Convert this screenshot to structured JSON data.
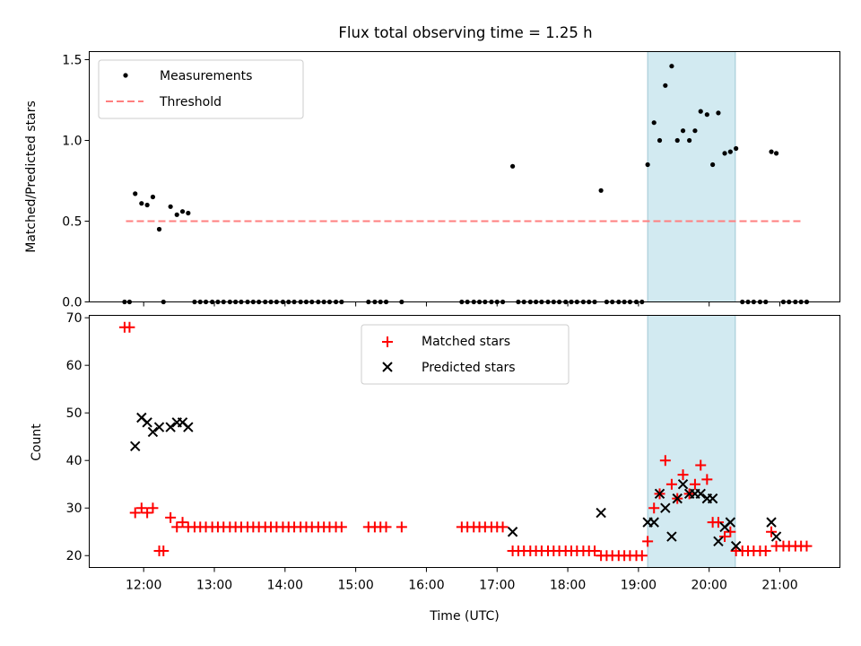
{
  "chart_data": {
    "title": "Flux total observing time = 1.25 h",
    "xlabel": "Time (UTC)",
    "x_ticks": [
      "12:00",
      "13:00",
      "14:00",
      "15:00",
      "16:00",
      "17:00",
      "18:00",
      "19:00",
      "20:00",
      "21:00"
    ],
    "x_tick_hours": [
      12,
      13,
      14,
      15,
      16,
      17,
      18,
      19,
      20,
      21
    ],
    "xlim_hours": [
      11.23,
      21.85
    ],
    "highlight_band_hours": [
      19.13,
      20.37
    ],
    "highlight_color": "#add8e6",
    "panels": [
      {
        "type": "scatter",
        "ylabel": "Matched/Predicted stars",
        "ylim": [
          0,
          1.55
        ],
        "yticks": [
          "0.0",
          "0.5",
          "1.0",
          "1.5"
        ],
        "ytick_values": [
          0,
          0.5,
          1.0,
          1.5
        ],
        "legend": "top-left",
        "threshold": {
          "name": "Threshold",
          "value": 0.5,
          "x_range_hours": [
            11.75,
            21.33
          ],
          "color": "#ff7f7f"
        },
        "series": [
          {
            "name": "Measurements",
            "color": "#000000",
            "x_hours": [
              11.73,
              11.8,
              11.88,
              11.97,
              12.05,
              12.13,
              12.22,
              12.28,
              12.38,
              12.47,
              12.55,
              12.63,
              12.72,
              12.8,
              12.88,
              12.97,
              13.05,
              13.13,
              13.22,
              13.3,
              13.38,
              13.47,
              13.55,
              13.63,
              13.72,
              13.8,
              13.88,
              13.97,
              14.05,
              14.13,
              14.22,
              14.3,
              14.38,
              14.47,
              14.55,
              14.63,
              14.72,
              14.8,
              15.18,
              15.27,
              15.35,
              15.43,
              15.65,
              16.5,
              16.58,
              16.67,
              16.75,
              16.83,
              16.92,
              17.0,
              17.08,
              17.22,
              17.3,
              17.38,
              17.47,
              17.55,
              17.63,
              17.72,
              17.8,
              17.88,
              17.97,
              18.05,
              18.13,
              18.22,
              18.3,
              18.38,
              18.47,
              18.55,
              18.63,
              18.72,
              18.8,
              18.88,
              18.97,
              19.05,
              19.13,
              19.22,
              19.3,
              19.38,
              19.47,
              19.55,
              19.63,
              19.72,
              19.8,
              19.88,
              19.97,
              20.05,
              20.13,
              20.22,
              20.3,
              20.38,
              20.47,
              20.55,
              20.63,
              20.72,
              20.8,
              20.88,
              20.95,
              21.05,
              21.13,
              21.22,
              21.3,
              21.38
            ],
            "y": [
              0,
              0,
              0.67,
              0.61,
              0.6,
              0.65,
              0.45,
              0,
              0.59,
              0.54,
              0.56,
              0.55,
              0,
              0,
              0,
              0,
              0,
              0,
              0,
              0,
              0,
              0,
              0,
              0,
              0,
              0,
              0,
              0,
              0,
              0,
              0,
              0,
              0,
              0,
              0,
              0,
              0,
              0,
              0,
              0,
              0,
              0,
              0,
              0,
              0,
              0,
              0,
              0,
              0,
              0,
              0,
              0.84,
              0,
              0,
              0,
              0,
              0,
              0,
              0,
              0,
              0,
              0,
              0,
              0,
              0,
              0,
              0.69,
              0,
              0,
              0,
              0,
              0,
              0,
              0,
              0.85,
              1.11,
              1.0,
              1.34,
              1.46,
              1.0,
              1.06,
              1.0,
              1.06,
              1.18,
              1.16,
              0.85,
              1.17,
              0.92,
              0.93,
              0.95,
              0,
              0,
              0,
              0,
              0,
              0.93,
              0.92,
              0,
              0,
              0,
              0,
              0
            ]
          }
        ]
      },
      {
        "type": "scatter",
        "ylabel": "Count",
        "ylim": [
          17.5,
          70.5
        ],
        "yticks": [
          "20",
          "30",
          "40",
          "50",
          "60",
          "70"
        ],
        "ytick_values": [
          20,
          30,
          40,
          50,
          60,
          70
        ],
        "legend": "top-center",
        "series": [
          {
            "name": "Matched stars",
            "marker": "plus",
            "color": "#ff0000",
            "x_hours": [
              11.73,
              11.8,
              11.88,
              11.97,
              12.05,
              12.13,
              12.22,
              12.28,
              12.38,
              12.47,
              12.55,
              12.63,
              12.72,
              12.8,
              12.88,
              12.97,
              13.05,
              13.13,
              13.22,
              13.3,
              13.38,
              13.47,
              13.55,
              13.63,
              13.72,
              13.8,
              13.88,
              13.97,
              14.05,
              14.13,
              14.22,
              14.3,
              14.38,
              14.47,
              14.55,
              14.63,
              14.72,
              14.8,
              15.18,
              15.27,
              15.35,
              15.43,
              15.65,
              16.5,
              16.58,
              16.67,
              16.75,
              16.83,
              16.92,
              17.0,
              17.08,
              17.22,
              17.3,
              17.38,
              17.47,
              17.55,
              17.63,
              17.72,
              17.8,
              17.88,
              17.97,
              18.05,
              18.13,
              18.22,
              18.3,
              18.38,
              18.47,
              18.55,
              18.63,
              18.72,
              18.8,
              18.88,
              18.97,
              19.05,
              19.13,
              19.22,
              19.3,
              19.38,
              19.47,
              19.55,
              19.63,
              19.72,
              19.8,
              19.88,
              19.97,
              20.05,
              20.13,
              20.22,
              20.3,
              20.38,
              20.47,
              20.55,
              20.63,
              20.72,
              20.8,
              20.88,
              20.95,
              21.05,
              21.13,
              21.22,
              21.3,
              21.38
            ],
            "y": [
              68,
              68,
              29,
              30,
              29,
              30,
              21,
              21,
              28,
              26,
              27,
              26,
              26,
              26,
              26,
              26,
              26,
              26,
              26,
              26,
              26,
              26,
              26,
              26,
              26,
              26,
              26,
              26,
              26,
              26,
              26,
              26,
              26,
              26,
              26,
              26,
              26,
              26,
              26,
              26,
              26,
              26,
              26,
              26,
              26,
              26,
              26,
              26,
              26,
              26,
              26,
              21,
              21,
              21,
              21,
              21,
              21,
              21,
              21,
              21,
              21,
              21,
              21,
              21,
              21,
              21,
              20,
              20,
              20,
              20,
              20,
              20,
              20,
              20,
              23,
              30,
              33,
              40,
              35,
              32,
              37,
              33,
              35,
              39,
              36,
              27,
              27,
              24,
              25,
              21,
              21,
              21,
              21,
              21,
              21,
              25,
              22,
              22,
              22,
              22,
              22,
              22
            ]
          },
          {
            "name": "Predicted stars",
            "marker": "x",
            "color": "#000000",
            "x_hours": [
              11.88,
              11.97,
              12.05,
              12.13,
              12.22,
              12.38,
              12.47,
              12.55,
              12.63,
              17.22,
              18.47,
              19.13,
              19.22,
              19.3,
              19.38,
              19.47,
              19.55,
              19.63,
              19.72,
              19.8,
              19.88,
              19.97,
              20.05,
              20.13,
              20.22,
              20.3,
              20.38,
              20.88,
              20.95
            ],
            "y": [
              43,
              49,
              48,
              46,
              47,
              47,
              48,
              48,
              47,
              25,
              29,
              27,
              27,
              33,
              30,
              24,
              32,
              35,
              33,
              33,
              33,
              32,
              32,
              23,
              26,
              27,
              22,
              27,
              24
            ]
          }
        ]
      }
    ]
  }
}
